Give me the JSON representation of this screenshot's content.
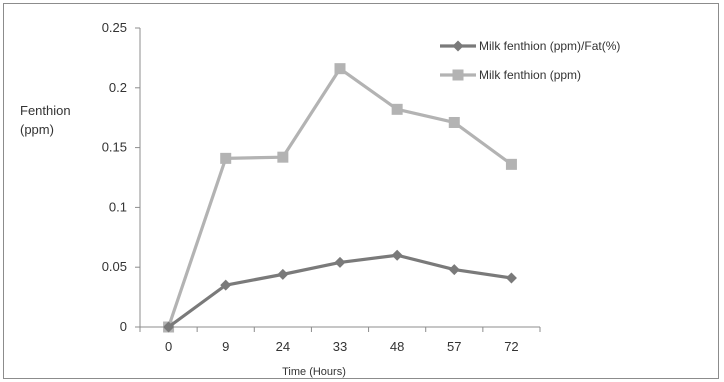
{
  "chart_data": {
    "type": "line",
    "title": "",
    "ylabel_line1": "Fenthion",
    "ylabel_line2": "(ppm)",
    "xlabel": "Time (Hours)",
    "categories": [
      "0",
      "9",
      "24",
      "33",
      "48",
      "57",
      "72"
    ],
    "ylim": [
      0,
      0.25
    ],
    "yticks": [
      "0",
      "0.05",
      "0.1",
      "0.15",
      "0.2",
      "0.25"
    ],
    "grid": false,
    "legend_position": "top-right",
    "series": [
      {
        "name": "Milk fenthion (ppm)/Fat(%)",
        "marker": "diamond",
        "color": "#7a7a7a",
        "values": [
          0,
          0.035,
          0.044,
          0.054,
          0.06,
          0.048,
          0.041
        ]
      },
      {
        "name": "Milk fenthion (ppm)",
        "marker": "square",
        "color": "#b3b3b3",
        "values": [
          0,
          0.141,
          0.142,
          0.216,
          0.182,
          0.171,
          0.136
        ]
      }
    ]
  }
}
